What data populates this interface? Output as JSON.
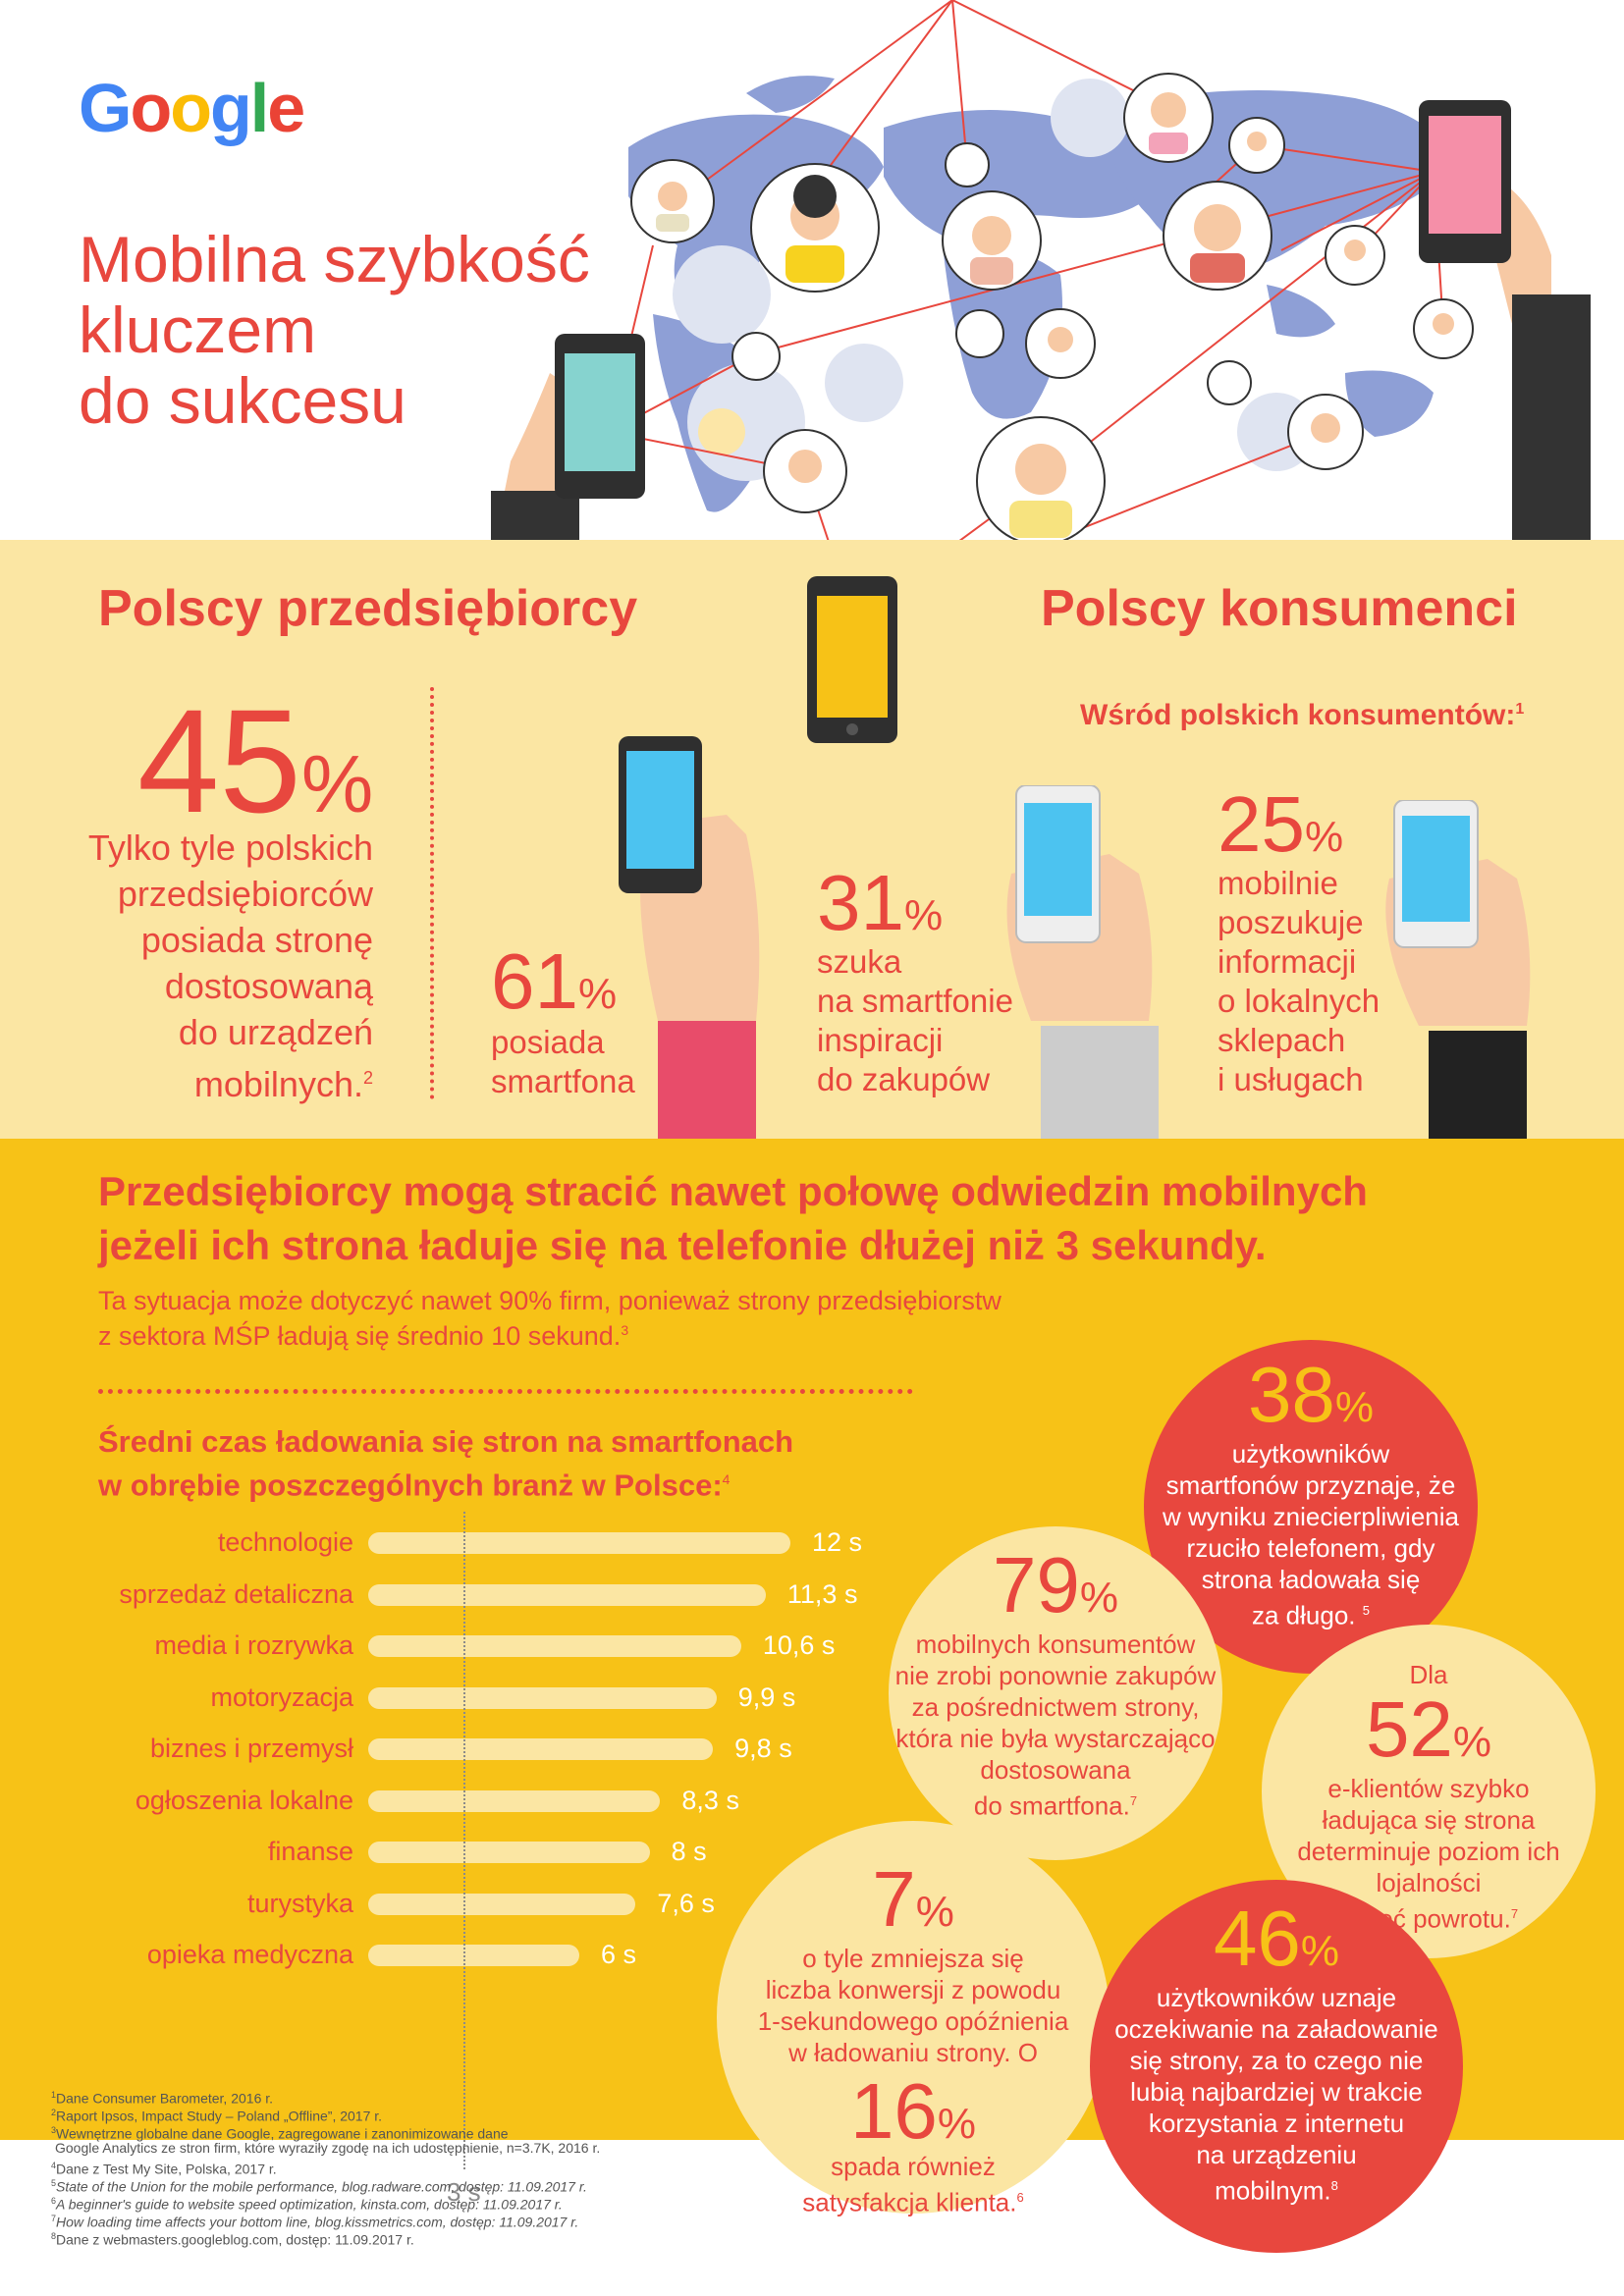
{
  "logo": {
    "text": "Google",
    "letters": [
      "G",
      "o",
      "o",
      "g",
      "l",
      "e"
    ],
    "colors": [
      "#4285f4",
      "#ea4335",
      "#fbbc05",
      "#4285f4",
      "#34a853",
      "#ea4335"
    ]
  },
  "title": {
    "lines": [
      "Mobilna szybkość",
      "kluczem",
      "do sukcesu"
    ]
  },
  "colors": {
    "red": "#e8473e",
    "yellow": "#f7c217",
    "light_yellow": "#fbe6a3",
    "map_blue": "#8e9fd6"
  },
  "businesses": {
    "heading": "Polscy przedsiębiorcy",
    "stat_value": "45",
    "stat_unit": "%",
    "stat_lines": [
      "Tylko tyle polskich",
      "przedsiębiorców",
      "posiada stronę",
      "dostosowaną",
      "do urządzeń",
      "mobilnych."
    ],
    "stat_ref": "2"
  },
  "consumers": {
    "heading": "Polscy konsumenci",
    "subheading": "Wśród polskich konsumentów:",
    "subheading_ref": "1",
    "stats": [
      {
        "value": "61",
        "unit": "%",
        "lines": [
          "posiada",
          "smartfona"
        ]
      },
      {
        "value": "31",
        "unit": "%",
        "lines": [
          "szuka",
          "na smartfonie",
          "inspiracji",
          "do zakupów"
        ]
      },
      {
        "value": "25",
        "unit": "%",
        "lines": [
          "mobilnie",
          "poszukuje",
          "informacji",
          "o lokalnych",
          "sklepach",
          "i usługach"
        ]
      }
    ]
  },
  "warning": {
    "headline_lines": [
      "Przedsiębiorcy mogą stracić nawet połowę odwiedzin mobilnych",
      "jeżeli ich strona ładuje się na telefonie dłużej niż 3 sekundy."
    ],
    "sub_lines": [
      "Ta sytuacja może dotyczyć nawet 90% firm, ponieważ strony przedsiębiorstw",
      "z sektora MŚP ładują się średnio 10 sekund."
    ],
    "sub_ref": "3"
  },
  "chart_data": {
    "type": "bar",
    "title": "Średni czas ładowania się stron na smartfonach w obrębie poszczególnych branż w Polsce:",
    "title_lines": [
      "Średni czas ładowania się stron na smartfonach",
      "w obrębie poszczególnych branż w Polsce:"
    ],
    "title_ref": "4",
    "categories": [
      "technologie",
      "sprzedaż detaliczna",
      "media i rozrywka",
      "motoryzacja",
      "biznes i przemysł",
      "ogłoszenia lokalne",
      "finanse",
      "turystyka",
      "opieka medyczna"
    ],
    "values": [
      12,
      11.3,
      10.6,
      9.9,
      9.8,
      8.3,
      8,
      7.6,
      6
    ],
    "value_labels": [
      "12 s",
      "11,3 s",
      "10,6 s",
      "9,9 s",
      "9,8 s",
      "8,3 s",
      "8 s",
      "7,6 s",
      "6 s"
    ],
    "reference_line": {
      "value": 3,
      "label": "3 s"
    },
    "xlim": [
      0,
      12
    ]
  },
  "bubbles": [
    {
      "id": "38",
      "prefix": "",
      "value": "38",
      "unit": "%",
      "lines": [
        "użytkowników",
        "smartfonów przyznaje, że",
        "w wyniku zniecierpliwienia",
        "rzuciło telefonem, gdy",
        "strona ładowała się",
        "za długo."
      ],
      "ref": "5"
    },
    {
      "id": "79",
      "prefix": "",
      "value": "79",
      "unit": "%",
      "lines": [
        "mobilnych konsumentów",
        "nie zrobi ponownie zakupów",
        "za pośrednictwem strony,",
        "która nie była wystarczająco",
        "dostosowana",
        "do smartfona."
      ],
      "ref": "7"
    },
    {
      "id": "52",
      "prefix": "Dla",
      "value": "52",
      "unit": "%",
      "lines": [
        "e-klientów szybko",
        "ładująca się strona",
        "determinuje poziom ich",
        "lojalności",
        "i chęć powrotu."
      ],
      "ref": "7"
    },
    {
      "id": "7",
      "prefix": "",
      "value": "7",
      "unit": "%",
      "lines": [
        "o tyle zmniejsza się",
        "liczba konwersji z powodu",
        "1-sekundowego opóźnienia",
        "w ładowaniu strony. O"
      ],
      "ref": "",
      "value2": "16",
      "unit2": "%",
      "lines2": [
        "spada również",
        "satysfakcja klienta."
      ],
      "ref2": "6"
    },
    {
      "id": "46",
      "prefix": "",
      "value": "46",
      "unit": "%",
      "lines": [
        "użytkowników uznaje",
        "oczekiwanie na załadowanie",
        "się strony, za to czego nie",
        "lubią najbardziej w trakcie",
        "korzystania z internetu",
        "na urządzeniu",
        "mobilnym."
      ],
      "ref": "8"
    }
  ],
  "footnotes": [
    {
      "num": "1",
      "text": "Dane Consumer Barometer, 2016 r."
    },
    {
      "num": "2",
      "text": "Raport Ipsos, Impact Study – Poland „Offline”, 2017 r."
    },
    {
      "num": "3",
      "text": "Wewnętrzne globalne dane Google, zagregowane i zanonimizowane dane"
    },
    {
      "num": "",
      "text": "Google Analytics ze stron firm, które wyraziły zgodę na ich udostępnienie, n=3.7K, 2016 r."
    },
    {
      "num": "4",
      "text": "Dane z Test My Site, Polska, 2017 r."
    },
    {
      "num": "5",
      "text": "State of the Union for the mobile performance, blog.radware.com, dostęp: 11.09.2017 r."
    },
    {
      "num": "6",
      "text": "A beginner's guide to website speed optimization, kinsta.com, dostęp: 11.09.2017 r."
    },
    {
      "num": "7",
      "text": "How loading time affects your bottom line, blog.kissmetrics.com, dostęp: 11.09.2017 r."
    },
    {
      "num": "8",
      "text": "Dane z webmasters.googleblog.com, dostęp: 11.09.2017 r."
    }
  ]
}
